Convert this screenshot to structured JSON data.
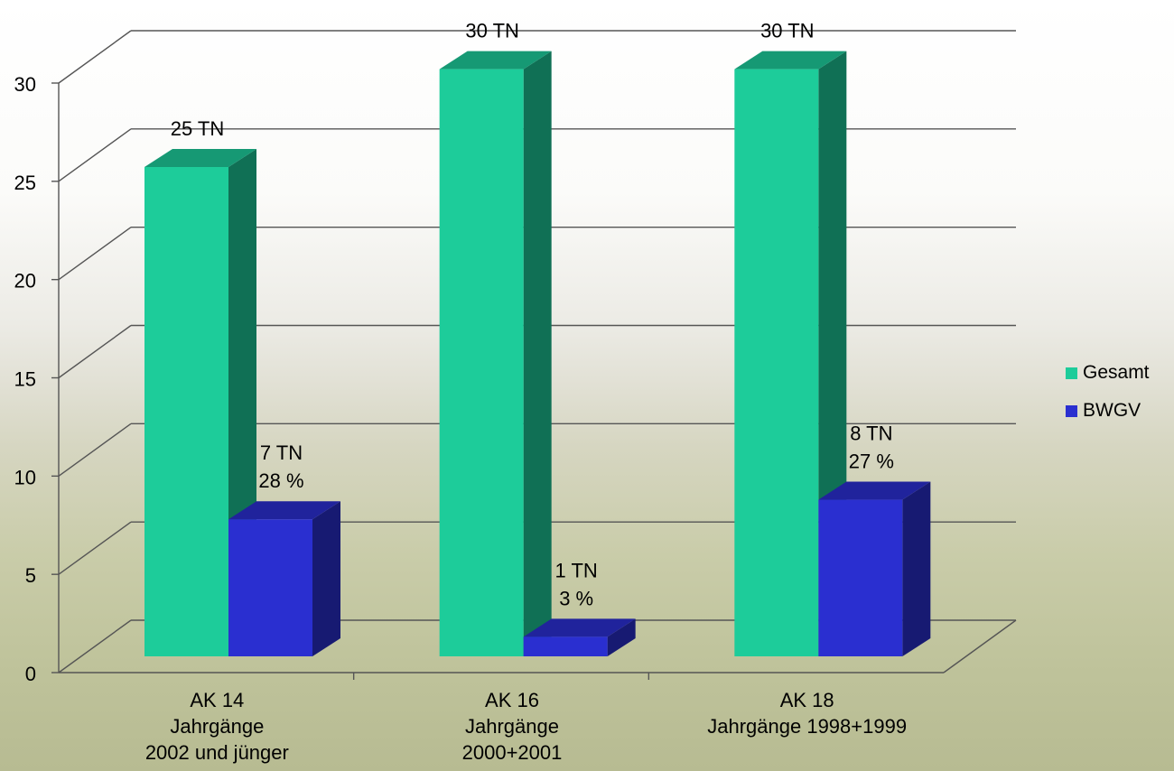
{
  "chart_data": {
    "type": "bar",
    "categories": [
      [
        "AK 14",
        "Jahrgänge",
        "2002 und jünger"
      ],
      [
        "AK 16",
        "Jahrgänge",
        "2000+2001"
      ],
      [
        "AK 18",
        "Jahrgänge 1998+1999"
      ]
    ],
    "series": [
      {
        "name": "Gesamt",
        "values": [
          25,
          30,
          30
        ],
        "color": "#1dcc9a"
      },
      {
        "name": "BWGV",
        "values": [
          7,
          1,
          8
        ],
        "color": "#2a2fd0"
      }
    ],
    "data_labels": {
      "Gesamt": [
        [
          "25 TN"
        ],
        [
          "30 TN"
        ],
        [
          "30 TN"
        ]
      ],
      "BWGV": [
        [
          "7 TN",
          "28 %"
        ],
        [
          "1 TN",
          "3 %"
        ],
        [
          "8 TN",
          "27 %"
        ]
      ]
    },
    "yticks": [
      "0",
      "5",
      "10",
      "15",
      "20",
      "25",
      "30"
    ],
    "ylim": [
      0,
      30
    ],
    "grid": true,
    "legend_position": "right",
    "three_d": true
  }
}
